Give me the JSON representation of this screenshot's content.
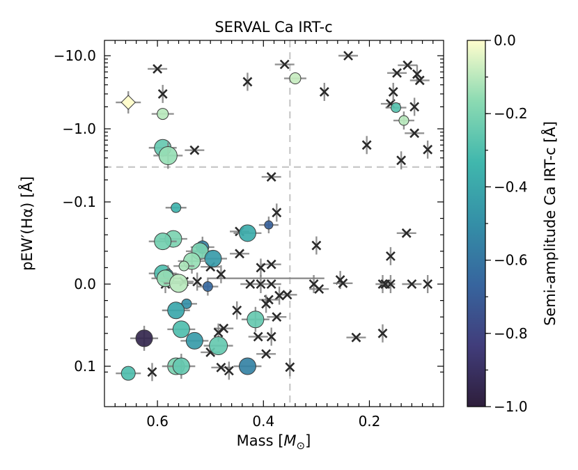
{
  "chart_data": {
    "type": "scatter",
    "title": "SERVAL Ca IRT-c",
    "xlabel": "Mass [M⊙]",
    "ylabel": "pEW′(Hα) [Å]",
    "x_reversed": true,
    "xlim": [
      0.7,
      0.06
    ],
    "x_ticks": [
      {
        "v": 0.6,
        "label": "0.6"
      },
      {
        "v": 0.4,
        "label": "0.4"
      },
      {
        "v": 0.2,
        "label": "0.2"
      }
    ],
    "y_scale": "symlog",
    "y_reversed": true,
    "y_ticks": [
      {
        "v": -10,
        "label": "−10.0"
      },
      {
        "v": -1,
        "label": "−1.0"
      },
      {
        "v": -0.1,
        "label": "−0.1"
      },
      {
        "v": 0,
        "label": "0.0"
      },
      {
        "v": 0.1,
        "label": "0.1"
      }
    ],
    "reference_lines": {
      "x": 0.35,
      "y": -0.3
    },
    "colorbar": {
      "label": "Semi-amplitude Ca IRT-c [Å]",
      "range": [
        -1.0,
        0.0
      ],
      "ticks": [
        {
          "v": 0.0,
          "label": "0.0"
        },
        {
          "v": -0.2,
          "label": "−0.2"
        },
        {
          "v": -0.4,
          "label": "−0.4"
        },
        {
          "v": -0.6,
          "label": "−0.6"
        },
        {
          "v": -0.8,
          "label": "−0.8"
        },
        {
          "v": -1.0,
          "label": "−1.0"
        }
      ],
      "colormap": [
        "#2e1e3b",
        "#413d7b",
        "#37659e",
        "#348fa7",
        "#40b7ad",
        "#8bdab2",
        "#fffdcd"
      ]
    },
    "detections": [
      {
        "x": 0.655,
        "y": -2.3,
        "c": 0.0,
        "size": 10,
        "marker": "diamond"
      },
      {
        "x": 0.59,
        "y": -1.6,
        "c": -0.1,
        "size": 8
      },
      {
        "x": 0.59,
        "y": -0.55,
        "c": -0.25,
        "size": 12
      },
      {
        "x": 0.58,
        "y": -0.43,
        "c": -0.15,
        "size": 13
      },
      {
        "x": 0.34,
        "y": -4.9,
        "c": -0.08,
        "size": 8
      },
      {
        "x": 0.15,
        "y": -1.95,
        "c": -0.28,
        "size": 7
      },
      {
        "x": 0.135,
        "y": -1.3,
        "c": -0.1,
        "size": 7
      },
      {
        "x": 0.565,
        "y": -0.093,
        "c": -0.35,
        "size": 7
      },
      {
        "x": 0.43,
        "y": -0.062,
        "c": -0.38,
        "size": 12
      },
      {
        "x": 0.39,
        "y": -0.072,
        "c": -0.68,
        "size": 6
      },
      {
        "x": 0.57,
        "y": -0.055,
        "c": -0.2,
        "size": 12
      },
      {
        "x": 0.59,
        "y": -0.052,
        "c": -0.22,
        "size": 12
      },
      {
        "x": 0.515,
        "y": -0.045,
        "c": -0.55,
        "size": 9
      },
      {
        "x": 0.52,
        "y": -0.04,
        "c": -0.2,
        "size": 12
      },
      {
        "x": 0.495,
        "y": -0.031,
        "c": -0.45,
        "size": 12
      },
      {
        "x": 0.535,
        "y": -0.028,
        "c": -0.15,
        "size": 12
      },
      {
        "x": 0.55,
        "y": -0.022,
        "c": -0.12,
        "size": 7
      },
      {
        "x": 0.59,
        "y": -0.013,
        "c": -0.3,
        "size": 12
      },
      {
        "x": 0.58,
        "y": -0.012,
        "c": -0.45,
        "size": 7
      },
      {
        "x": 0.585,
        "y": -0.007,
        "c": -0.15,
        "size": 12
      },
      {
        "x": 0.56,
        "y": -0.001,
        "c": -0.1,
        "size": 13
      },
      {
        "x": 0.505,
        "y": 0.003,
        "c": -0.65,
        "size": 7
      },
      {
        "x": 0.545,
        "y": 0.024,
        "c": -0.5,
        "size": 7
      },
      {
        "x": 0.565,
        "y": 0.032,
        "c": -0.4,
        "size": 12
      },
      {
        "x": 0.415,
        "y": 0.043,
        "c": -0.25,
        "size": 12
      },
      {
        "x": 0.555,
        "y": 0.055,
        "c": -0.3,
        "size": 12
      },
      {
        "x": 0.53,
        "y": 0.069,
        "c": -0.45,
        "size": 12
      },
      {
        "x": 0.625,
        "y": 0.066,
        "c": -0.95,
        "size": 12
      },
      {
        "x": 0.485,
        "y": 0.075,
        "c": -0.25,
        "size": 13
      },
      {
        "x": 0.565,
        "y": 0.1,
        "c": -0.2,
        "size": 12
      },
      {
        "x": 0.555,
        "y": 0.1,
        "c": -0.25,
        "size": 12
      },
      {
        "x": 0.43,
        "y": 0.1,
        "c": -0.55,
        "size": 12
      },
      {
        "x": 0.655,
        "y": 0.125,
        "c": -0.3,
        "size": 10
      }
    ],
    "non_detections": [
      {
        "x": 0.6,
        "y": -6.6
      },
      {
        "x": 0.59,
        "y": -3.0
      },
      {
        "x": 0.53,
        "y": -0.51
      },
      {
        "x": 0.43,
        "y": -4.4
      },
      {
        "x": 0.36,
        "y": -7.6
      },
      {
        "x": 0.285,
        "y": -3.2
      },
      {
        "x": 0.24,
        "y": -10.0
      },
      {
        "x": 0.205,
        "y": -0.6
      },
      {
        "x": 0.16,
        "y": -2.2
      },
      {
        "x": 0.155,
        "y": -3.2
      },
      {
        "x": 0.148,
        "y": -5.8
      },
      {
        "x": 0.14,
        "y": -0.37
      },
      {
        "x": 0.128,
        "y": -7.4
      },
      {
        "x": 0.11,
        "y": -5.6
      },
      {
        "x": 0.105,
        "y": -4.6
      },
      {
        "x": 0.115,
        "y": -2.0
      },
      {
        "x": 0.115,
        "y": -0.87
      },
      {
        "x": 0.09,
        "y": -0.52
      },
      {
        "x": 0.385,
        "y": -0.22
      },
      {
        "x": 0.375,
        "y": -0.087
      },
      {
        "x": 0.445,
        "y": -0.064
      },
      {
        "x": 0.3,
        "y": -0.047
      },
      {
        "x": 0.13,
        "y": -0.062
      },
      {
        "x": 0.16,
        "y": -0.034
      },
      {
        "x": 0.385,
        "y": -0.024
      },
      {
        "x": 0.405,
        "y": -0.02
      },
      {
        "x": 0.445,
        "y": -0.037
      },
      {
        "x": 0.48,
        "y": -0.012
      },
      {
        "x": 0.5,
        "y": -0.021
      },
      {
        "x": 0.525,
        "y": -0.003
      },
      {
        "x": 0.55,
        "y": -0.003
      },
      {
        "x": 0.585,
        "y": 0.0
      },
      {
        "x": 0.425,
        "y": 0.0
      },
      {
        "x": 0.405,
        "y": 0.0
      },
      {
        "x": 0.385,
        "y": 0.0
      },
      {
        "x": 0.305,
        "y": 0.0
      },
      {
        "x": 0.295,
        "y": 0.006
      },
      {
        "x": 0.255,
        "y": -0.005
      },
      {
        "x": 0.25,
        "y": -0.001
      },
      {
        "x": 0.175,
        "y": 0.0
      },
      {
        "x": 0.17,
        "y": 0.0
      },
      {
        "x": 0.16,
        "y": 0.0
      },
      {
        "x": 0.12,
        "y": 0.0
      },
      {
        "x": 0.09,
        "y": 0.0
      },
      {
        "x": 0.355,
        "y": 0.013
      },
      {
        "x": 0.37,
        "y": 0.014
      },
      {
        "x": 0.39,
        "y": 0.019
      },
      {
        "x": 0.395,
        "y": 0.024
      },
      {
        "x": 0.375,
        "y": 0.04
      },
      {
        "x": 0.45,
        "y": 0.032
      },
      {
        "x": 0.475,
        "y": 0.054
      },
      {
        "x": 0.485,
        "y": 0.059
      },
      {
        "x": 0.41,
        "y": 0.064
      },
      {
        "x": 0.385,
        "y": 0.064
      },
      {
        "x": 0.225,
        "y": 0.065
      },
      {
        "x": 0.175,
        "y": 0.06
      },
      {
        "x": 0.48,
        "y": 0.104
      },
      {
        "x": 0.465,
        "y": 0.115
      },
      {
        "x": 0.395,
        "y": 0.085
      },
      {
        "x": 0.35,
        "y": 0.103
      },
      {
        "x": 0.5,
        "y": 0.083
      },
      {
        "x": 0.61,
        "y": 0.12
      }
    ],
    "background_bar": {
      "x1": 0.505,
      "x2": 0.285,
      "y": -0.007
    }
  }
}
